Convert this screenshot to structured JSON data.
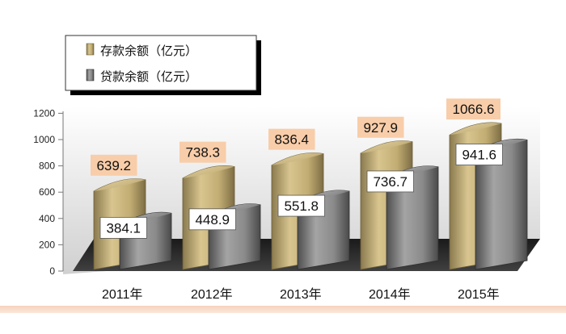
{
  "chart_data": {
    "type": "bar",
    "title": "",
    "xlabel": "",
    "ylabel": "",
    "categories": [
      "2011年",
      "2012年",
      "2013年",
      "2014年",
      "2015年"
    ],
    "series": [
      {
        "name": "存款余额（亿元）",
        "values": [
          639.2,
          738.3,
          836.4,
          927.9,
          1066.6
        ],
        "color": "#c9b27a",
        "label_bg": "#f8cda9"
      },
      {
        "name": "贷款余额（亿元）",
        "values": [
          384.1,
          448.9,
          551.8,
          736.7,
          941.6
        ],
        "color": "#8c8c8c",
        "label_bg": "#ffffff"
      }
    ],
    "ylim": [
      0,
      1200
    ],
    "yticks": [
      0,
      200,
      400,
      600,
      800,
      1000,
      1200
    ],
    "grid": false,
    "legend": "top-left",
    "style": "3d-cylinder"
  }
}
